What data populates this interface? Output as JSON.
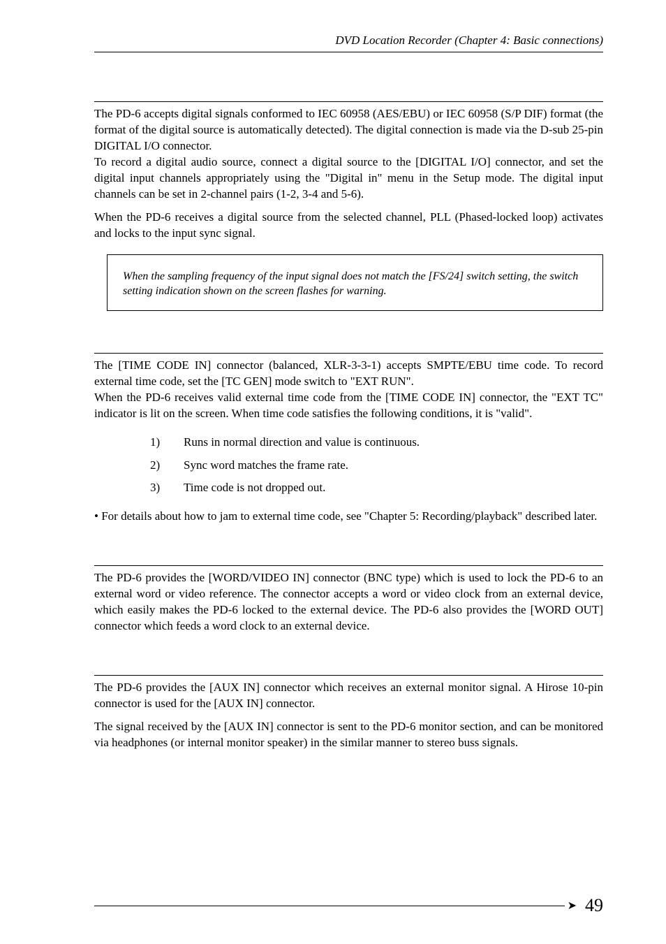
{
  "header": {
    "text": "DVD Location Recorder (Chapter 4: Basic connections)"
  },
  "section1": {
    "para1": "The PD-6 accepts digital signals conformed to IEC 60958 (AES/EBU) or IEC 60958 (S/P DIF) format (the format of the digital source is automatically detected). The digital connection is made via the D-sub 25-pin DIGITAL I/O connector.",
    "para2": "To record a digital audio source, connect a digital source to the [DIGITAL I/O] connector, and set the digital input channels appropriately using the \"Digital in\" menu in the Setup mode. The digital input channels can be set in 2-channel pairs (1-2, 3-4 and 5-6).",
    "para3": "When the PD-6 receives a digital source from the selected channel, PLL (Phased-locked loop) activates and locks to the input sync signal.",
    "note": "When the sampling frequency of the input signal does not match the [FS/24] switch setting, the switch setting indication shown on the screen flashes for warning."
  },
  "section2": {
    "para1": "The [TIME CODE IN] connector (balanced, XLR-3-3-1) accepts SMPTE/EBU time code. To record external time code, set the [TC GEN] mode switch to \"EXT RUN\".",
    "para2": "When the PD-6 receives valid external time code from the [TIME CODE IN] connector, the \"EXT TC\" indicator is lit on the screen. When time code satisfies the following conditions, it is \"valid\".",
    "list": {
      "item1_num": "1)",
      "item1_text": "Runs in normal direction and value is continuous.",
      "item2_num": "2)",
      "item2_text": "Sync word matches the frame rate.",
      "item3_num": "3)",
      "item3_text": "Time code is not dropped out."
    },
    "bullet": "• For details about how to jam to external time code, see \"Chapter 5: Recording/playback\" described later."
  },
  "section3": {
    "para1": "The PD-6 provides the [WORD/VIDEO IN] connector (BNC type) which is used to lock the PD-6 to an external word or video reference. The connector accepts a word or video clock from an external device, which easily makes the PD-6 locked to the external device. The PD-6 also provides the [WORD OUT] connector which feeds a word clock to an external device."
  },
  "section4": {
    "para1": "The PD-6 provides the [AUX IN] connector which receives an external monitor signal. A Hirose 10-pin connector is used for the [AUX IN] connector.",
    "para2": "The signal received by the [AUX IN] connector is sent to the PD-6 monitor section, and can be monitored via headphones (or internal monitor speaker) in the similar manner to stereo buss signals."
  },
  "footer": {
    "arrow": "➤",
    "pagenum": "49"
  }
}
